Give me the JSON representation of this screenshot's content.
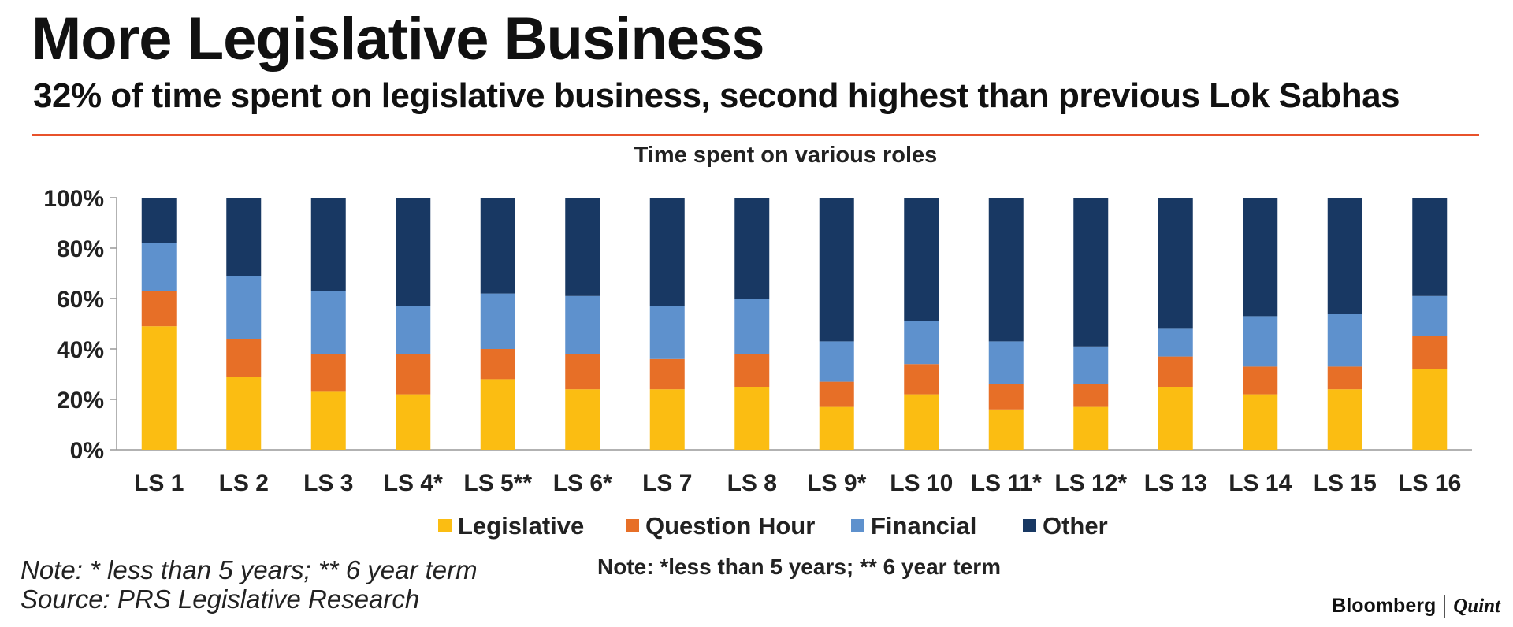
{
  "header": {
    "title": "More Legislative Business",
    "subtitle": "32% of time spent on legislative business, second highest than previous Lok Sabhas"
  },
  "footer": {
    "note_line1": "Note: * less than 5 years; ** 6 year term",
    "note_line2": "Source: PRS Legislative Research",
    "brand_left": "Bloomberg",
    "brand_right": "Quint"
  },
  "colors": {
    "Legislative": "#fbbd12",
    "Question Hour": "#e76f27",
    "Financial": "#5e91cd",
    "Other": "#183863",
    "accent_rule": "#e8522b"
  },
  "chart_data": {
    "type": "bar",
    "stacked": true,
    "title": "Time spent on various roles",
    "note": "Note: *less than 5 years; ** 6 year term",
    "categories": [
      "LS 1",
      "LS 2",
      "LS 3",
      "LS 4*",
      "LS 5**",
      "LS 6*",
      "LS 7",
      "LS 8",
      "LS 9*",
      "LS 10",
      "LS 11*",
      "LS 12*",
      "LS 13",
      "LS 14",
      "LS 15",
      "LS 16"
    ],
    "series": [
      {
        "name": "Legislative",
        "values": [
          49,
          29,
          23,
          22,
          28,
          24,
          24,
          25,
          17,
          22,
          16,
          17,
          25,
          22,
          24,
          32
        ]
      },
      {
        "name": "Question Hour",
        "values": [
          14,
          15,
          15,
          16,
          12,
          14,
          12,
          13,
          10,
          12,
          10,
          9,
          12,
          11,
          9,
          13
        ]
      },
      {
        "name": "Financial",
        "values": [
          19,
          25,
          25,
          19,
          22,
          23,
          21,
          22,
          16,
          17,
          17,
          15,
          11,
          20,
          21,
          16
        ]
      },
      {
        "name": "Other",
        "values": [
          18,
          31,
          37,
          43,
          38,
          39,
          43,
          40,
          57,
          49,
          57,
          59,
          52,
          47,
          46,
          39
        ]
      }
    ],
    "ylim": [
      0,
      100
    ],
    "yticks": [
      "0%",
      "20%",
      "40%",
      "60%",
      "80%",
      "100%"
    ],
    "xlabel": "",
    "ylabel": "",
    "legend_position": "bottom"
  }
}
